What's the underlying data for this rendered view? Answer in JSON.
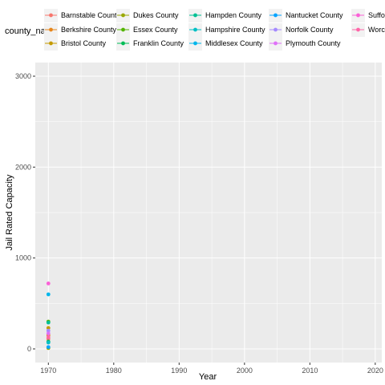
{
  "chart_data": {
    "type": "scatter",
    "title": "",
    "xlabel": "Year",
    "ylabel": "Jail Rated Capacity",
    "legend_title": "county_name",
    "legend_position": "top",
    "xlim": [
      1968,
      2021
    ],
    "ylim": [
      -150,
      3150
    ],
    "x_ticks": [
      1970,
      1980,
      1990,
      2000,
      2010,
      2020
    ],
    "y_ticks": [
      0,
      1000,
      2000,
      3000
    ],
    "grid": true,
    "series": [
      {
        "name": "Barnstable County",
        "color": "#F8766D",
        "x": [
          1970
        ],
        "y": [
          110
        ]
      },
      {
        "name": "Berkshire County",
        "color": "#E7861B",
        "x": [
          1970
        ],
        "y": [
          150
        ]
      },
      {
        "name": "Bristol County",
        "color": "#C49A00",
        "x": [
          1970
        ],
        "y": [
          230
        ]
      },
      {
        "name": "Dukes County",
        "color": "#99A800",
        "x": [
          1970
        ],
        "y": [
          10
        ]
      },
      {
        "name": "Essex County",
        "color": "#53B400",
        "x": [
          1970
        ],
        "y": [
          300
        ]
      },
      {
        "name": "Franklin County",
        "color": "#00BC56",
        "x": [
          1970
        ],
        "y": [
          80
        ]
      },
      {
        "name": "Hampden County",
        "color": "#00C094",
        "x": [
          1970
        ],
        "y": [
          290
        ]
      },
      {
        "name": "Hampshire County",
        "color": "#00BFC4",
        "x": [
          1970
        ],
        "y": [
          70
        ]
      },
      {
        "name": "Middlesex County",
        "color": "#00B6EB",
        "x": [
          1970
        ],
        "y": [
          600
        ]
      },
      {
        "name": "Nantucket County",
        "color": "#06A4FF",
        "x": [
          1970
        ],
        "y": [
          20
        ]
      },
      {
        "name": "Norfolk County",
        "color": "#A58AFF",
        "x": [
          1970
        ],
        "y": [
          200
        ]
      },
      {
        "name": "Plymouth County",
        "color": "#DF70F8",
        "x": [
          1970
        ],
        "y": [
          170
        ]
      },
      {
        "name": "Suffolk County",
        "color": "#FB61D7",
        "x": [
          1970
        ],
        "y": [
          720
        ]
      },
      {
        "name": "Worcester County",
        "color": "#FF66A8",
        "x": [
          1970
        ],
        "y": [
          130
        ]
      }
    ]
  }
}
